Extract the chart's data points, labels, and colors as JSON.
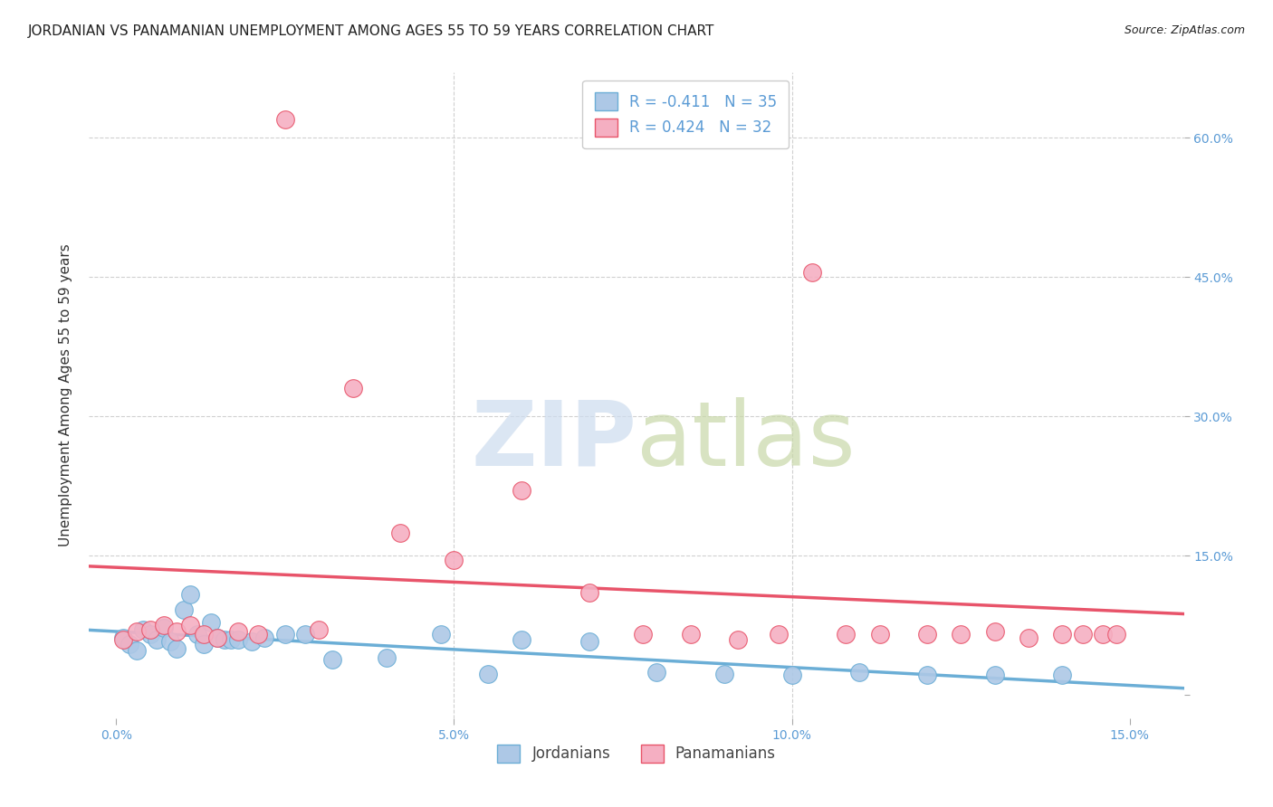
{
  "title": "JORDANIAN VS PANAMANIAN UNEMPLOYMENT AMONG AGES 55 TO 59 YEARS CORRELATION CHART",
  "source": "Source: ZipAtlas.com",
  "ylabel": "Unemployment Among Ages 55 to 59 years",
  "xlim": [
    -0.004,
    0.158
  ],
  "ylim": [
    -0.025,
    0.67
  ],
  "xtick_vals": [
    0.0,
    0.05,
    0.1,
    0.15
  ],
  "ytick_vals": [
    0.0,
    0.15,
    0.3,
    0.45,
    0.6
  ],
  "ytick_labels": [
    "",
    "15.0%",
    "30.0%",
    "45.0%",
    "60.0%"
  ],
  "xtick_labels": [
    "0.0%",
    "5.0%",
    "10.0%",
    "15.0%"
  ],
  "jordan_color": "#adc8e6",
  "panama_color": "#f5afc2",
  "jordan_edge": "#6baed6",
  "panama_edge": "#e8546a",
  "jordan_line_color": "#6baed6",
  "panama_line_color": "#e8546a",
  "watermark_zip_color": "#cddcee",
  "watermark_atlas_color": "#c8d8a8",
  "tick_color": "#5b9bd5",
  "grid_color": "#d0d0d0",
  "title_color": "#222222",
  "ylabel_color": "#333333",
  "background_color": "#ffffff",
  "legend_r_n_color": "#5b9bd5",
  "title_fontsize": 11,
  "source_fontsize": 9,
  "tick_fontsize": 10,
  "ylabel_fontsize": 11,
  "legend_fontsize": 12,
  "watermark_fontsize": 72,
  "jordan_x": [
    0.001,
    0.002,
    0.003,
    0.004,
    0.005,
    0.006,
    0.007,
    0.008,
    0.009,
    0.01,
    0.011,
    0.012,
    0.013,
    0.014,
    0.015,
    0.016,
    0.017,
    0.018,
    0.02,
    0.022,
    0.025,
    0.028,
    0.032,
    0.04,
    0.048,
    0.055,
    0.06,
    0.07,
    0.08,
    0.09,
    0.1,
    0.11,
    0.12,
    0.13,
    0.14
  ],
  "jordan_y": [
    0.062,
    0.055,
    0.048,
    0.07,
    0.065,
    0.06,
    0.072,
    0.058,
    0.05,
    0.092,
    0.108,
    0.065,
    0.055,
    0.078,
    0.062,
    0.06,
    0.06,
    0.06,
    0.058,
    0.062,
    0.065,
    0.065,
    0.038,
    0.04,
    0.065,
    0.023,
    0.06,
    0.058,
    0.025,
    0.023,
    0.022,
    0.025,
    0.022,
    0.022,
    0.022
  ],
  "panama_x": [
    0.001,
    0.003,
    0.005,
    0.007,
    0.009,
    0.011,
    0.013,
    0.015,
    0.018,
    0.021,
    0.025,
    0.03,
    0.035,
    0.042,
    0.05,
    0.06,
    0.07,
    0.078,
    0.085,
    0.092,
    0.098,
    0.103,
    0.108,
    0.113,
    0.12,
    0.125,
    0.13,
    0.135,
    0.14,
    0.143,
    0.146,
    0.148
  ],
  "panama_y": [
    0.06,
    0.068,
    0.07,
    0.075,
    0.068,
    0.075,
    0.065,
    0.062,
    0.068,
    0.065,
    0.62,
    0.07,
    0.33,
    0.175,
    0.145,
    0.22,
    0.11,
    0.065,
    0.065,
    0.06,
    0.065,
    0.455,
    0.065,
    0.065,
    0.065,
    0.065,
    0.068,
    0.062,
    0.065,
    0.065,
    0.065,
    0.065
  ]
}
